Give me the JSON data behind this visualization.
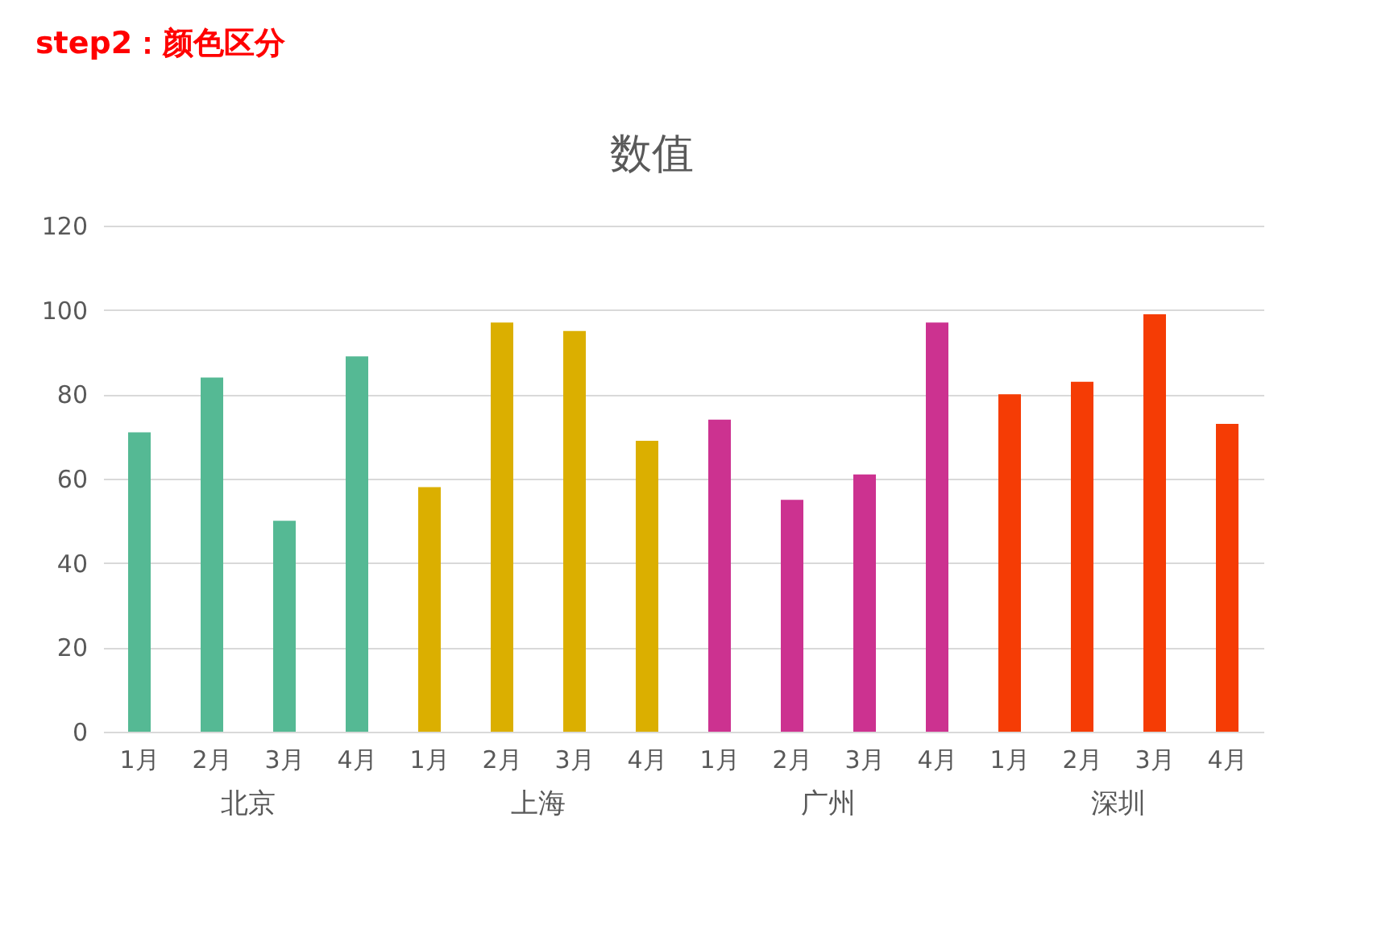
{
  "chart_data": {
    "type": "bar",
    "title": "数值",
    "annotations": [
      "step2：颜色区分"
    ],
    "categories": [
      "1月",
      "2月",
      "3月",
      "4月",
      "1月",
      "2月",
      "3月",
      "4月",
      "1月",
      "2月",
      "3月",
      "4月",
      "1月",
      "2月",
      "3月",
      "4月"
    ],
    "series": [
      {
        "name": "北京",
        "color": "#55b994",
        "values": [
          71,
          84,
          50,
          89,
          null,
          null,
          null,
          null,
          null,
          null,
          null,
          null,
          null,
          null,
          null,
          null
        ]
      },
      {
        "name": "上海",
        "color": "#dbaf00",
        "values": [
          null,
          null,
          null,
          null,
          58,
          97,
          95,
          69,
          null,
          null,
          null,
          null,
          null,
          null,
          null,
          null
        ]
      },
      {
        "name": "广州",
        "color": "#cc3290",
        "values": [
          null,
          null,
          null,
          null,
          null,
          null,
          null,
          null,
          74,
          55,
          61,
          97,
          null,
          null,
          null,
          null
        ]
      },
      {
        "name": "深圳",
        "color": "#f53c05",
        "values": [
          null,
          null,
          null,
          null,
          null,
          null,
          null,
          null,
          null,
          null,
          null,
          null,
          80,
          83,
          99,
          73
        ]
      }
    ],
    "ylim": [
      0,
      120
    ],
    "yticks": [
      0,
      20,
      40,
      60,
      80,
      100,
      120
    ],
    "grid": "y"
  }
}
